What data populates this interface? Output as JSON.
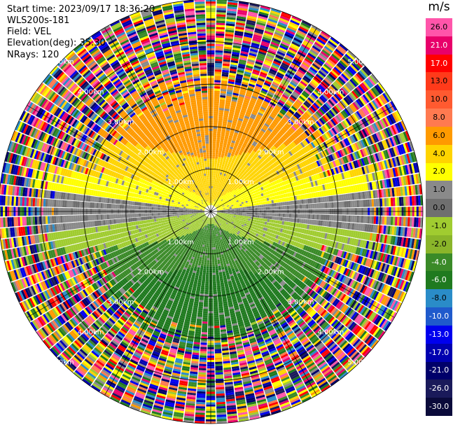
{
  "header": {
    "start_time": "Start time: 2023/09/17 18:36:20",
    "site": "WLS200s-181",
    "field": "Field: VEL",
    "elevation": "Elevation(deg): 35.30",
    "nrays": "NRays: 120"
  },
  "colorbar": {
    "unit": "m/s",
    "levels": [
      {
        "label": "26.0",
        "color": "#ff55aa"
      },
      {
        "label": "21.0",
        "color": "#e8006a"
      },
      {
        "label": "17.0",
        "color": "#ff0000"
      },
      {
        "label": "13.0",
        "color": "#ff3a1a"
      },
      {
        "label": "10.0",
        "color": "#ff5a30"
      },
      {
        "label": "8.0",
        "color": "#ff7a50"
      },
      {
        "label": "6.0",
        "color": "#ff9a00"
      },
      {
        "label": "4.0",
        "color": "#ffd400"
      },
      {
        "label": "2.0",
        "color": "#ffff00"
      },
      {
        "label": "1.0",
        "color": "#8a8a8a"
      },
      {
        "label": "0.0",
        "color": "#6f6f6f"
      },
      {
        "label": "-1.0",
        "color": "#a0cc30"
      },
      {
        "label": "-2.0",
        "color": "#8ab52a"
      },
      {
        "label": "-4.0",
        "color": "#3a8a28"
      },
      {
        "label": "-6.0",
        "color": "#1f7a1f"
      },
      {
        "label": "-8.0",
        "color": "#2a8cc8"
      },
      {
        "label": "-10.0",
        "color": "#1f5acc"
      },
      {
        "label": "-13.0",
        "color": "#0000ee"
      },
      {
        "label": "-17.0",
        "color": "#0000b0"
      },
      {
        "label": "-21.0",
        "color": "#00006a"
      },
      {
        "label": "-26.0",
        "color": "#1a1a5a"
      },
      {
        "label": "-30.0",
        "color": "#0a0a3a"
      }
    ]
  },
  "range_labels": {
    "r1": "1.00km",
    "r2": "2.00km",
    "r3": "3.00km",
    "r4": "4.00km",
    "r5": "5.00km"
  },
  "plot": {
    "rays": 120,
    "max_range_km": 5.0,
    "ring_spacing_km": 1.0
  }
}
